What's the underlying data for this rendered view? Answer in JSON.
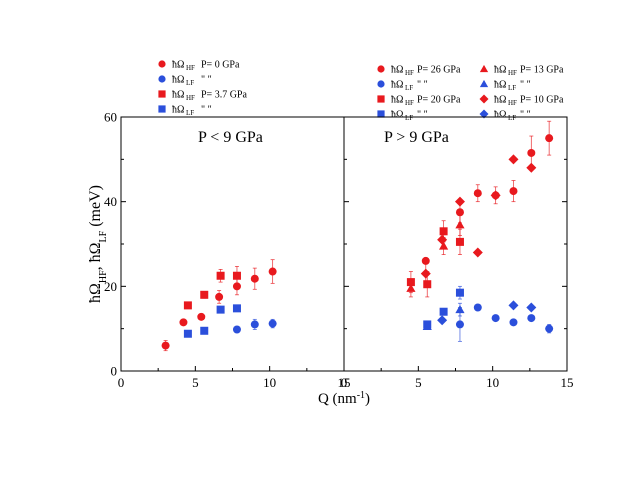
{
  "chart_data": [
    {
      "type": "scatter",
      "panel_label": "P < 9 GPa",
      "xlabel": "Q (nm",
      "xlabel_sup": "-1",
      "xlabel_close": ")",
      "ylabel_parts": [
        "ħΩ",
        "HF",
        ", ħΩ",
        "LF",
        " (meV)"
      ],
      "xlim": [
        0,
        15
      ],
      "ylim": [
        0,
        60
      ],
      "x_ticks": [
        "0",
        "5",
        "10",
        "15"
      ],
      "y_ticks": [
        "0",
        "20",
        "40",
        "60"
      ],
      "legend": [
        {
          "symbol": "ħΩ",
          "sub": "HF",
          "text": "P= 0 GPa",
          "color": "#e8191e",
          "marker": "circle"
        },
        {
          "symbol": "ħΩ",
          "sub": "LF",
          "text": "\"      \"",
          "color": "#2b4fdb",
          "marker": "circle"
        },
        {
          "symbol": "ħΩ",
          "sub": "HF",
          "text": "P= 3.7 GPa",
          "color": "#e8191e",
          "marker": "square"
        },
        {
          "symbol": "ħΩ",
          "sub": "LF",
          "text": "\"      \"",
          "color": "#2b4fdb",
          "marker": "square"
        }
      ],
      "series": [
        {
          "name": "HF P=0 GPa",
          "color": "#e8191e",
          "marker": "circle",
          "points": [
            [
              3.0,
              6.0,
              1.2
            ],
            [
              4.2,
              11.5,
              0
            ],
            [
              5.4,
              12.8,
              0
            ],
            [
              6.6,
              17.5,
              1.5
            ],
            [
              7.8,
              20.0,
              2.0
            ],
            [
              9.0,
              21.8,
              2.5
            ],
            [
              10.2,
              23.5,
              2.8
            ]
          ]
        },
        {
          "name": "LF P=0 GPa",
          "color": "#2b4fdb",
          "marker": "circle",
          "points": [
            [
              7.8,
              9.8,
              0
            ],
            [
              9.0,
              11.0,
              1.2
            ],
            [
              10.2,
              11.2,
              1.0
            ]
          ]
        },
        {
          "name": "HF P=3.7 GPa",
          "color": "#e8191e",
          "marker": "square",
          "points": [
            [
              4.5,
              15.5,
              0
            ],
            [
              5.6,
              18.0,
              0.8
            ],
            [
              6.7,
              22.5,
              1.5
            ],
            [
              7.8,
              22.5,
              2.2
            ]
          ]
        },
        {
          "name": "LF P=3.7 GPa",
          "color": "#2b4fdb",
          "marker": "square",
          "points": [
            [
              4.5,
              8.8,
              0
            ],
            [
              5.6,
              9.5,
              0
            ],
            [
              6.7,
              14.5,
              0
            ],
            [
              7.8,
              14.8,
              0
            ]
          ]
        }
      ]
    },
    {
      "type": "scatter",
      "panel_label": "P > 9 GPa",
      "xlim": [
        0,
        15
      ],
      "ylim": [
        0,
        60
      ],
      "x_ticks": [
        "0",
        "5",
        "10",
        "15"
      ],
      "legend": [
        {
          "symbol": "ħΩ",
          "sub": "HF",
          "text": "P= 26 GPa",
          "color": "#e8191e",
          "marker": "circle"
        },
        {
          "symbol": "ħΩ",
          "sub": "LF",
          "text": "\"      \"",
          "color": "#2b4fdb",
          "marker": "circle"
        },
        {
          "symbol": "ħΩ",
          "sub": "HF",
          "text": "P= 20 GPa",
          "color": "#e8191e",
          "marker": "square"
        },
        {
          "symbol": "ħΩ",
          "sub": "LF",
          "text": "\"      \"",
          "color": "#2b4fdb",
          "marker": "square"
        },
        {
          "symbol": "ħΩ",
          "sub": "HF",
          "text": "P= 13 GPa",
          "color": "#e8191e",
          "marker": "triangle"
        },
        {
          "symbol": "ħΩ",
          "sub": "LF",
          "text": "\"      \"",
          "color": "#2b4fdb",
          "marker": "triangle"
        },
        {
          "symbol": "ħΩ",
          "sub": "HF",
          "text": "P= 10 GPa",
          "color": "#e8191e",
          "marker": "diamond"
        },
        {
          "symbol": "ħΩ",
          "sub": "LF",
          "text": "\"      \"",
          "color": "#2b4fdb",
          "marker": "diamond"
        }
      ],
      "series": [
        {
          "name": "HF P=26 GPa",
          "color": "#e8191e",
          "marker": "circle",
          "points": [
            [
              5.5,
              26.0,
              0
            ],
            [
              7.8,
              37.5,
              2.5
            ],
            [
              9.0,
              42.0,
              2.0
            ],
            [
              10.2,
              41.5,
              2.0
            ],
            [
              11.4,
              42.5,
              2.5
            ],
            [
              12.6,
              51.5,
              4.0
            ],
            [
              13.8,
              55.0,
              4.0
            ]
          ]
        },
        {
          "name": "LF P=26 GPa",
          "color": "#2b4fdb",
          "marker": "circle",
          "points": [
            [
              7.8,
              11.0,
              4.0
            ],
            [
              9.0,
              15.0,
              0
            ],
            [
              10.2,
              12.5,
              0
            ],
            [
              11.4,
              11.5,
              0
            ],
            [
              12.6,
              12.5,
              0
            ],
            [
              13.8,
              10.0,
              1.0
            ]
          ]
        },
        {
          "name": "HF P=20 GPa",
          "color": "#e8191e",
          "marker": "square",
          "points": [
            [
              4.5,
              21.0,
              2.5
            ],
            [
              5.6,
              20.5,
              3.0
            ],
            [
              6.7,
              33.0,
              2.5
            ],
            [
              7.8,
              30.5,
              3.0
            ]
          ]
        },
        {
          "name": "LF P=20 GPa",
          "color": "#2b4fdb",
          "marker": "square",
          "points": [
            [
              5.6,
              11.0,
              0
            ],
            [
              6.7,
              14.0,
              0
            ],
            [
              7.8,
              18.5,
              1.5
            ]
          ]
        },
        {
          "name": "HF P=13 GPa",
          "color": "#e8191e",
          "marker": "triangle",
          "points": [
            [
              4.5,
              19.5,
              2.0
            ],
            [
              6.7,
              29.5,
              2.0
            ],
            [
              7.8,
              34.5,
              2.5
            ]
          ]
        },
        {
          "name": "LF P=13 GPa",
          "color": "#2b4fdb",
          "marker": "triangle",
          "points": [
            [
              5.6,
              10.5,
              0
            ],
            [
              7.8,
              14.5,
              1.5
            ]
          ]
        },
        {
          "name": "HF P=10 GPa",
          "color": "#e8191e",
          "marker": "diamond",
          "points": [
            [
              5.5,
              23.0,
              2.5
            ],
            [
              6.6,
              31.0,
              0
            ],
            [
              7.8,
              40.0,
              0
            ],
            [
              9.0,
              28.0,
              0
            ],
            [
              10.2,
              41.5,
              0
            ],
            [
              11.4,
              50.0,
              0
            ],
            [
              12.6,
              48.0,
              0
            ]
          ]
        },
        {
          "name": "LF P=10 GPa",
          "color": "#2b4fdb",
          "marker": "diamond",
          "points": [
            [
              6.6,
              12.0,
              0
            ],
            [
              11.4,
              15.5,
              0
            ],
            [
              12.6,
              15.0,
              0
            ]
          ]
        }
      ]
    }
  ]
}
